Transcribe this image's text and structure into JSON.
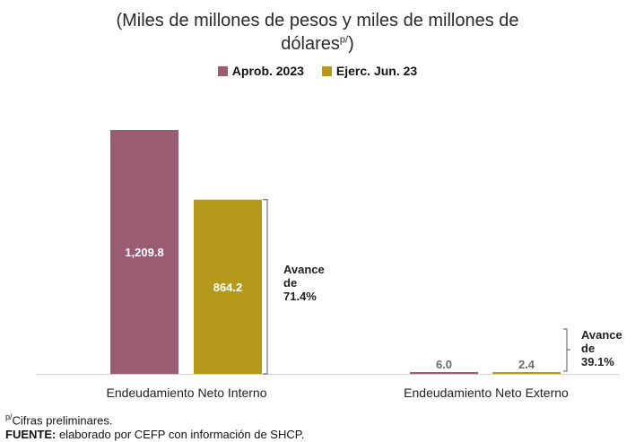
{
  "title": {
    "line1": "(Miles de millones de pesos y miles de millones de",
    "line2": "dólares",
    "line2_sup": "p/",
    "line2_end": ")"
  },
  "legend": [
    {
      "label": "Aprob. 2023",
      "color": "#9a5c73"
    },
    {
      "label": "Ejerc. Jun. 23",
      "color": "#b5991a"
    }
  ],
  "chart_data": {
    "type": "bar",
    "title": "(Miles de millones de pesos y miles de millones de dólares p/)",
    "categories": [
      "Endeudamiento Neto Interno",
      "Endeudamiento Neto Externo"
    ],
    "series": [
      {
        "name": "Aprob. 2023",
        "values": [
          1209.8,
          6.0
        ],
        "labels": [
          "1,209.8",
          "6.0"
        ],
        "color": "#9a5c73"
      },
      {
        "name": "Ejerc. Jun. 23",
        "values": [
          864.2,
          2.4
        ],
        "labels": [
          "864.2",
          "2.4"
        ],
        "color": "#b5991a"
      }
    ],
    "ylim": [
      0,
      1209.8
    ],
    "grid": false,
    "legend_position": "top-center",
    "annotations": [
      {
        "category": "Endeudamiento Neto Interno",
        "lines": [
          "Avance",
          "de",
          "71.4%"
        ]
      },
      {
        "category": "Endeudamiento Neto Externo",
        "lines": [
          "Avance",
          "de",
          "39.1%"
        ]
      }
    ]
  },
  "footnotes": {
    "prelim_sup": "p/",
    "prelim_text": "Cifras preliminares.",
    "source_label": "FUENTE:",
    "source_text": " elaborado por CEFP con información de SHCP."
  }
}
